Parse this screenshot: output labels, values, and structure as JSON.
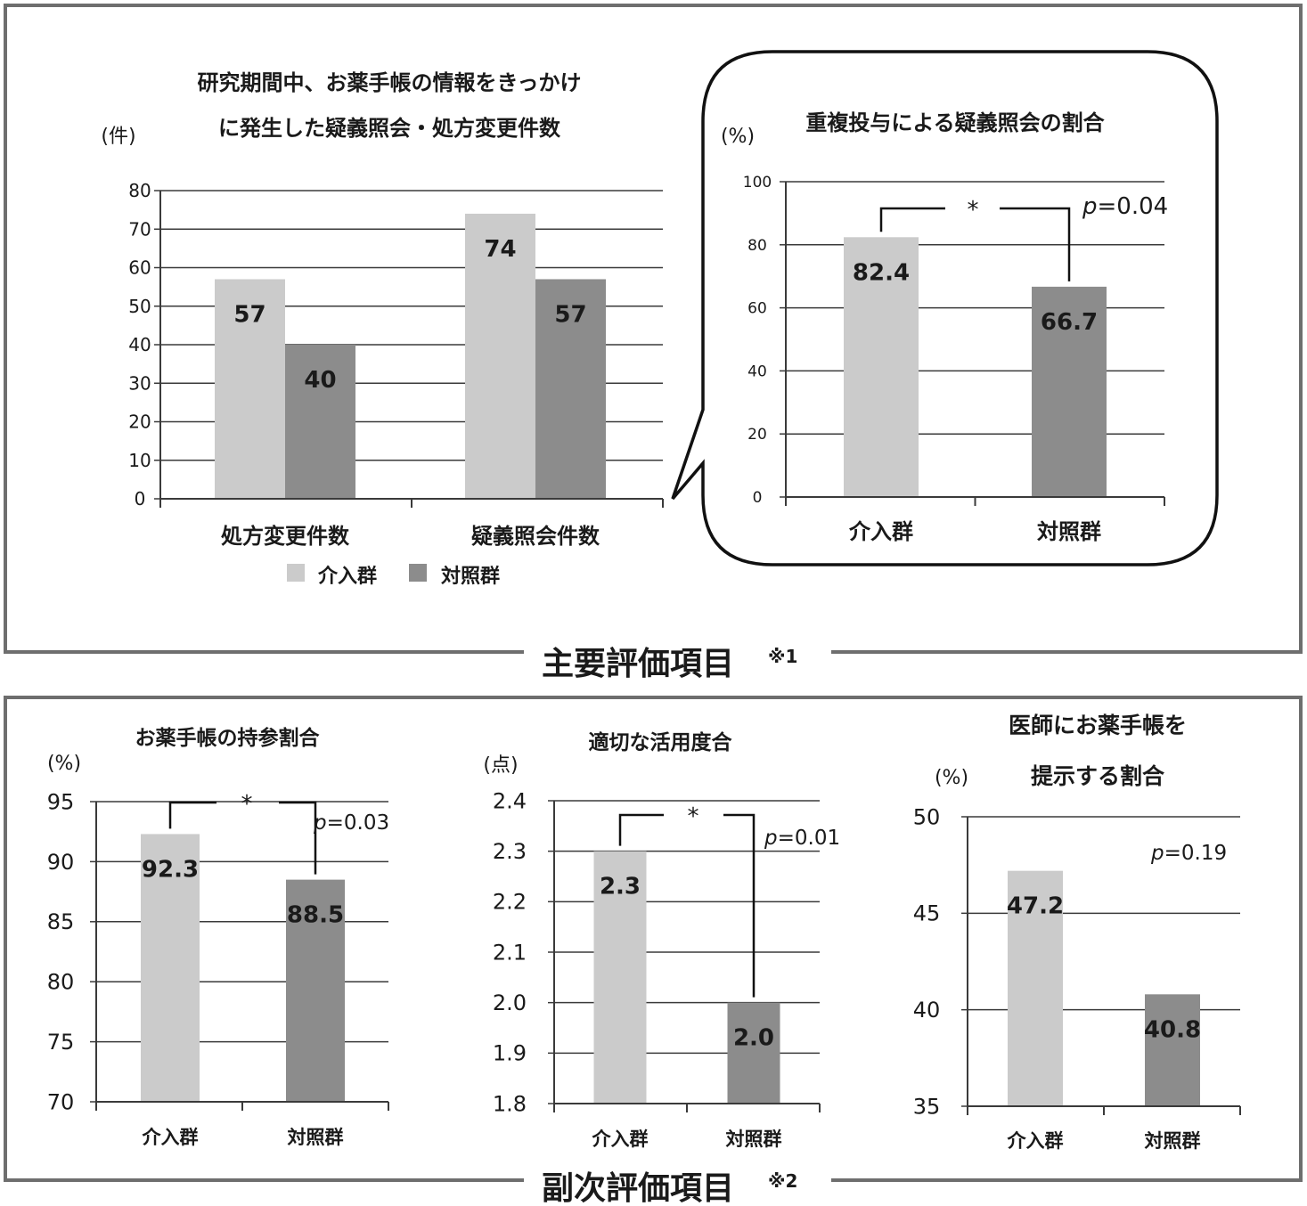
{
  "colors": {
    "intervention": "#cbcbcb",
    "control": "#8c8c8c",
    "grid": "#3a3a3a",
    "frame": "#6e6e6e"
  },
  "sections": {
    "primary": {
      "label": "主要評価項目",
      "note": "※1"
    },
    "secondary": {
      "label": "副次評価項目",
      "note": "※2"
    }
  },
  "legend": {
    "intervention": "介入群",
    "control": "対照群"
  },
  "chart_data": [
    {
      "id": "c1",
      "type": "bar",
      "title_lines": [
        "研究期間中、お薬手帳の情報をきっかけ",
        "に発生した疑義照会・処方変更件数"
      ],
      "ylabel": "(件)",
      "categories": [
        "処方変更件数",
        "疑義照会件数"
      ],
      "series": [
        {
          "name": "介入群",
          "values": [
            57,
            74
          ]
        },
        {
          "name": "対照群",
          "values": [
            40,
            57
          ]
        }
      ],
      "data_labels": [
        [
          "57",
          "74"
        ],
        [
          "40",
          "57"
        ]
      ],
      "ylim": [
        0,
        80
      ],
      "yticks": [
        "0",
        "10",
        "20",
        "30",
        "40",
        "50",
        "60",
        "70",
        "80"
      ],
      "grid": true,
      "legend": "bottom"
    },
    {
      "id": "c2",
      "type": "bar",
      "title_lines": [
        "重複投与による疑義照会の割合"
      ],
      "ylabel": "(%)",
      "categories": [
        "介入群",
        "対照群"
      ],
      "values": [
        82.4,
        66.7
      ],
      "data_labels": [
        "82.4",
        "66.7"
      ],
      "ylim": [
        0,
        100
      ],
      "yticks": [
        "0",
        "20",
        "40",
        "60",
        "80",
        "100"
      ],
      "grid": true,
      "significance": {
        "mark": "*",
        "p_prefix": "p",
        "p_value": "=0.04"
      }
    },
    {
      "id": "c3",
      "type": "bar",
      "title_lines": [
        "お薬手帳の持参割合"
      ],
      "ylabel": "(%)",
      "categories": [
        "介入群",
        "対照群"
      ],
      "values": [
        92.3,
        88.5
      ],
      "data_labels": [
        "92.3",
        "88.5"
      ],
      "ylim": [
        70,
        95
      ],
      "yticks": [
        "70",
        "75",
        "80",
        "85",
        "90",
        "95"
      ],
      "grid": true,
      "significance": {
        "mark": "*",
        "p_prefix": "p",
        "p_value": "=0.03"
      }
    },
    {
      "id": "c4",
      "type": "bar",
      "title_lines": [
        "適切な活用度合"
      ],
      "ylabel": "(点)",
      "categories": [
        "介入群",
        "対照群"
      ],
      "values": [
        2.3,
        2.0
      ],
      "data_labels": [
        "2.3",
        "2.0"
      ],
      "ylim": [
        1.8,
        2.4
      ],
      "yticks": [
        "1.8",
        "1.9",
        "2.0",
        "2.1",
        "2.2",
        "2.3",
        "2.4"
      ],
      "grid": true,
      "significance": {
        "mark": "*",
        "p_prefix": "p",
        "p_value": "=0.01"
      }
    },
    {
      "id": "c5",
      "type": "bar",
      "title_lines": [
        "医師にお薬手帳を",
        "提示する割合"
      ],
      "ylabel": "(%)",
      "categories": [
        "介入群",
        "対照群"
      ],
      "values": [
        47.2,
        40.8
      ],
      "data_labels": [
        "47.2",
        "40.8"
      ],
      "ylim": [
        35,
        50
      ],
      "yticks": [
        "35",
        "40",
        "45",
        "50"
      ],
      "grid": true,
      "significance": {
        "mark": "",
        "p_prefix": "p",
        "p_value": "=0.19"
      }
    }
  ]
}
